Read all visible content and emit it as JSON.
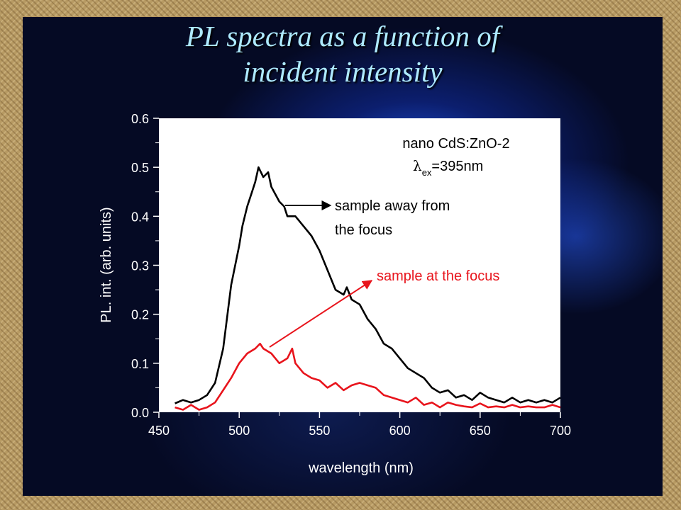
{
  "slide": {
    "title_line1": "PL spectra as a function of",
    "title_line2": "incident intensity"
  },
  "colors": {
    "title": "#aeeaff",
    "series_away": "#000000",
    "series_focus": "#e8141c"
  },
  "chart_data": {
    "type": "line",
    "xlabel": "wavelength (nm)",
    "ylabel": "PL. int. (arb. units)",
    "xlim": [
      450,
      700
    ],
    "ylim": [
      0.0,
      0.6
    ],
    "x_ticks": [
      "450",
      "500",
      "550",
      "600",
      "650",
      "700"
    ],
    "y_ticks": [
      "0.0",
      "0.1",
      "0.2",
      "0.3",
      "0.4",
      "0.5",
      "0.6"
    ],
    "grid": false,
    "annotations": {
      "sample_line1": "nano CdS:ZnO-2",
      "lambda_symbol": "λ",
      "lambda_subscript": "ex",
      "lambda_value": "=395nm",
      "away_line1": "sample away from",
      "away_line2": "the focus",
      "focus_label": "sample at the focus"
    },
    "series": [
      {
        "x": [
          460,
          465,
          470,
          475,
          480,
          485,
          490,
          495,
          500,
          502,
          505,
          508,
          510,
          512,
          515,
          518,
          520,
          525,
          528,
          530,
          535,
          540,
          545,
          550,
          555,
          560,
          565,
          567,
          570,
          575,
          580,
          585,
          590,
          595,
          600,
          605,
          610,
          615,
          620,
          625,
          630,
          635,
          640,
          645,
          650,
          655,
          660,
          665,
          670,
          675,
          680,
          685,
          690,
          695,
          700
        ],
        "values": [
          0.018,
          0.025,
          0.02,
          0.025,
          0.035,
          0.06,
          0.13,
          0.26,
          0.34,
          0.38,
          0.42,
          0.45,
          0.47,
          0.5,
          0.48,
          0.49,
          0.46,
          0.43,
          0.42,
          0.4,
          0.4,
          0.38,
          0.36,
          0.33,
          0.29,
          0.25,
          0.24,
          0.255,
          0.23,
          0.22,
          0.19,
          0.17,
          0.14,
          0.13,
          0.11,
          0.09,
          0.08,
          0.07,
          0.05,
          0.04,
          0.045,
          0.03,
          0.035,
          0.025,
          0.04,
          0.03,
          0.025,
          0.02,
          0.03,
          0.02,
          0.025,
          0.02,
          0.025,
          0.02,
          0.03
        ]
      },
      {
        "x": [
          460,
          465,
          470,
          475,
          480,
          485,
          490,
          495,
          500,
          505,
          510,
          513,
          515,
          520,
          525,
          530,
          533,
          535,
          540,
          545,
          550,
          555,
          560,
          565,
          570,
          575,
          580,
          585,
          590,
          595,
          600,
          605,
          610,
          615,
          620,
          625,
          630,
          635,
          640,
          645,
          650,
          655,
          660,
          665,
          670,
          675,
          680,
          685,
          690,
          695,
          700
        ],
        "values": [
          0.01,
          0.005,
          0.015,
          0.005,
          0.01,
          0.02,
          0.045,
          0.07,
          0.1,
          0.12,
          0.13,
          0.14,
          0.13,
          0.12,
          0.1,
          0.11,
          0.13,
          0.1,
          0.08,
          0.07,
          0.065,
          0.05,
          0.06,
          0.045,
          0.055,
          0.06,
          0.055,
          0.05,
          0.035,
          0.03,
          0.025,
          0.02,
          0.03,
          0.015,
          0.02,
          0.01,
          0.02,
          0.015,
          0.012,
          0.01,
          0.018,
          0.01,
          0.012,
          0.01,
          0.015,
          0.01,
          0.012,
          0.01,
          0.01,
          0.015,
          0.01
        ]
      }
    ]
  }
}
